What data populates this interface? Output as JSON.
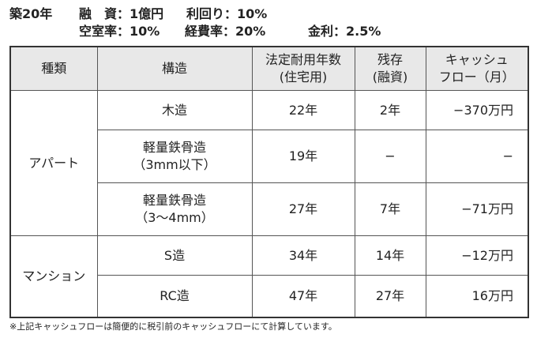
{
  "header": {
    "items": [
      "築20年",
      "融　資：1億円",
      "利回り：10%",
      "空室率：10%",
      "経費率：20%",
      "金利：2.5%"
    ]
  },
  "table": {
    "columns": [
      [
        "種類"
      ],
      [
        "構造"
      ],
      [
        "法定耐用年数",
        "(住宅用)"
      ],
      [
        "残存",
        "(融資)"
      ],
      [
        "キャッシュ",
        "フロー（月）"
      ]
    ],
    "groups": [
      {
        "name": "アパート",
        "rows": [
          {
            "structure": [
              "木造"
            ],
            "life": "22年",
            "remaining": "2年",
            "cashflow": "−370万円"
          },
          {
            "structure": [
              "軽量鉄骨造",
              "（3mm以下）"
            ],
            "life": "19年",
            "remaining": "−",
            "cashflow": "−"
          },
          {
            "structure": [
              "軽量鉄骨造",
              "（3〜4mm）"
            ],
            "life": "27年",
            "remaining": "7年",
            "cashflow": "−71万円"
          }
        ]
      },
      {
        "name": "マンション",
        "rows": [
          {
            "structure": [
              "S造"
            ],
            "life": "34年",
            "remaining": "14年",
            "cashflow": "−12万円"
          },
          {
            "structure": [
              "RC造"
            ],
            "life": "47年",
            "remaining": "27年",
            "cashflow": "16万円"
          }
        ]
      }
    ]
  },
  "footnote": "※上記キャッシュフローは簡便的に税引前のキャッシュフローにて計算しています。"
}
